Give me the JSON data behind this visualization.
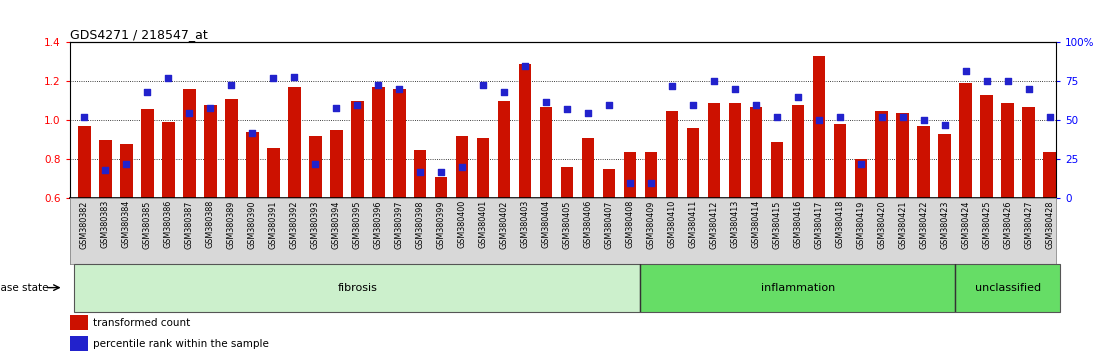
{
  "title": "GDS4271 / 218547_at",
  "samples": [
    "GSM380382",
    "GSM380383",
    "GSM380384",
    "GSM380385",
    "GSM380386",
    "GSM380387",
    "GSM380388",
    "GSM380389",
    "GSM380390",
    "GSM380391",
    "GSM380392",
    "GSM380393",
    "GSM380394",
    "GSM380395",
    "GSM380396",
    "GSM380397",
    "GSM380398",
    "GSM380399",
    "GSM380400",
    "GSM380401",
    "GSM380402",
    "GSM380403",
    "GSM380404",
    "GSM380405",
    "GSM380406",
    "GSM380407",
    "GSM380408",
    "GSM380409",
    "GSM380410",
    "GSM380411",
    "GSM380412",
    "GSM380413",
    "GSM380414",
    "GSM380415",
    "GSM380416",
    "GSM380417",
    "GSM380418",
    "GSM380419",
    "GSM380420",
    "GSM380421",
    "GSM380422",
    "GSM380423",
    "GSM380424",
    "GSM380425",
    "GSM380426",
    "GSM380427",
    "GSM380428"
  ],
  "bar_values": [
    0.97,
    0.9,
    0.88,
    1.06,
    0.99,
    1.16,
    1.08,
    1.11,
    0.94,
    0.86,
    1.17,
    0.92,
    0.95,
    1.1,
    1.17,
    1.16,
    0.85,
    0.71,
    0.92,
    0.91,
    1.1,
    1.29,
    1.07,
    0.76,
    0.91,
    0.75,
    0.84,
    0.84,
    1.05,
    0.96,
    1.09,
    1.09,
    1.07,
    0.89,
    1.08,
    1.33,
    0.98,
    0.8,
    1.05,
    1.04,
    0.97,
    0.93,
    1.19,
    1.13,
    1.09,
    1.07,
    0.84
  ],
  "dot_values_pct": [
    52,
    18,
    22,
    68,
    77,
    55,
    58,
    73,
    42,
    77,
    78,
    22,
    58,
    60,
    73,
    70,
    17,
    17,
    20,
    73,
    68,
    85,
    62,
    57,
    55,
    60,
    10,
    10,
    72,
    60,
    75,
    70,
    60,
    52,
    65,
    50,
    52,
    22,
    52,
    52,
    50,
    47,
    82,
    75,
    75,
    70,
    52
  ],
  "ylim_left": [
    0.6,
    1.4
  ],
  "ylim_right": [
    0,
    100
  ],
  "yticks_left": [
    0.6,
    0.8,
    1.0,
    1.2,
    1.4
  ],
  "yticks_right": [
    0,
    25,
    50,
    75,
    100
  ],
  "ytick_labels_right": [
    "0",
    "25",
    "50",
    "75",
    "100%"
  ],
  "grid_lines": [
    0.8,
    1.0,
    1.2
  ],
  "bar_color": "#cc1100",
  "dot_color": "#2222cc",
  "bar_width": 0.6,
  "xlim": [
    -0.7,
    46.3
  ],
  "groups": [
    {
      "label": "fibrosis",
      "start": 0,
      "end": 26,
      "facecolor": "#ccf0cc",
      "edgecolor": "#555555"
    },
    {
      "label": "inflammation",
      "start": 27,
      "end": 41,
      "facecolor": "#66dd66",
      "edgecolor": "#555555"
    },
    {
      "label": "unclassified",
      "start": 42,
      "end": 46,
      "facecolor": "#66dd66",
      "edgecolor": "#555555"
    }
  ],
  "xtick_bg_color": "#d8d8d8",
  "disease_state_label": "disease state",
  "legend_items": [
    {
      "color": "#cc1100",
      "label": "transformed count"
    },
    {
      "color": "#2222cc",
      "label": "percentile rank within the sample"
    }
  ]
}
